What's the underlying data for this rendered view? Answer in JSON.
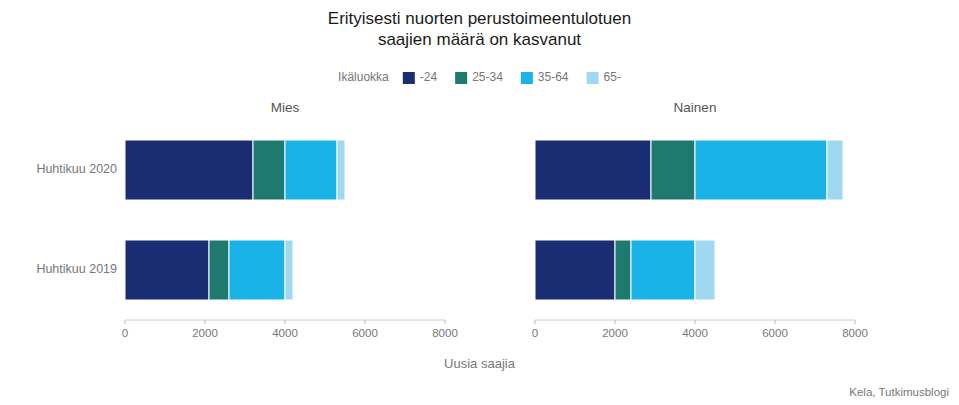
{
  "title": "Erityisesti nuorten perustoimeentulotuen\nsaajien määrä on kasvanut",
  "legend_title": "Ikäluokka",
  "xlabel": "Uusia saajia",
  "source": "Kela, Tutkimusblogi",
  "chart_data": [
    {
      "type": "bar",
      "orientation": "horizontal",
      "stacked": true,
      "title": "Mies",
      "categories": [
        "Huhtikuu 2020",
        "Huhtikuu 2019"
      ],
      "series": [
        {
          "name": "-24",
          "color": "#1b2d72",
          "values": [
            3200,
            2100
          ]
        },
        {
          "name": "25-34",
          "color": "#1e7a6e",
          "values": [
            800,
            500
          ]
        },
        {
          "name": "35-64",
          "color": "#1ab3e8",
          "values": [
            1300,
            1400
          ]
        },
        {
          "name": "65-",
          "color": "#9fd8f0",
          "values": [
            200,
            200
          ]
        }
      ],
      "xlim": [
        0,
        8000
      ],
      "xticks": [
        0,
        2000,
        4000,
        6000,
        8000
      ]
    },
    {
      "type": "bar",
      "orientation": "horizontal",
      "stacked": true,
      "title": "Nainen",
      "categories": [
        "Huhtikuu 2020",
        "Huhtikuu 2019"
      ],
      "series": [
        {
          "name": "-24",
          "color": "#1b2d72",
          "values": [
            2900,
            2000
          ]
        },
        {
          "name": "25-34",
          "color": "#1e7a6e",
          "values": [
            1100,
            400
          ]
        },
        {
          "name": "35-64",
          "color": "#1ab3e8",
          "values": [
            3300,
            1600
          ]
        },
        {
          "name": "65-",
          "color": "#9fd8f0",
          "values": [
            400,
            500
          ]
        }
      ],
      "xlim": [
        0,
        8000
      ],
      "xticks": [
        0,
        2000,
        4000,
        6000,
        8000
      ],
      "tick_labels": "x"
    }
  ]
}
